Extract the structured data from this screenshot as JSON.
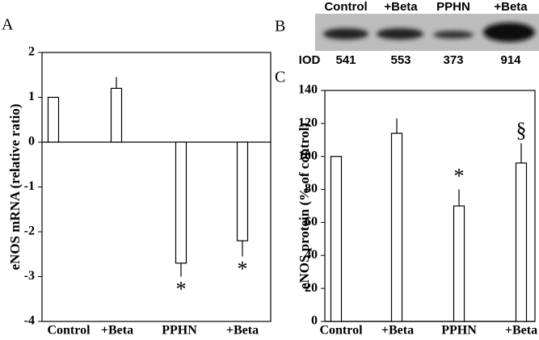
{
  "chart_data": [
    {
      "type": "bar",
      "panel_label": "A",
      "y_label": "eNOS mRNA (relative ratio)",
      "categories": [
        "Control",
        "+Beta",
        "PPHN",
        "+Beta"
      ],
      "values": [
        1,
        1.2,
        -2.7,
        -2.2
      ],
      "errors": [
        null,
        0.25,
        0.3,
        0.35
      ],
      "markers": [
        null,
        null,
        "*",
        "*"
      ],
      "color": "#ffffff",
      "ylim": [
        -4,
        2
      ],
      "yticks": [
        -4,
        -3,
        -2,
        -1,
        0,
        1,
        2
      ]
    },
    {
      "type": "bar",
      "panel_label": "C",
      "y_label": "eNOS protein (% of control)",
      "categories": [
        "Control",
        "+Beta",
        "PPHN",
        "+Beta"
      ],
      "values": [
        100,
        114,
        70,
        96
      ],
      "errors": [
        null,
        9,
        10,
        12
      ],
      "markers": [
        null,
        null,
        "*",
        "§"
      ],
      "color": "#ffffff",
      "ylim": [
        0,
        140
      ],
      "yticks": [
        0,
        20,
        40,
        60,
        80,
        100,
        120,
        140
      ]
    }
  ],
  "blot": {
    "panel_label": "B",
    "lanes": [
      "Control",
      "+Beta",
      "PPHN",
      "+Beta"
    ],
    "row_label": "IOD",
    "iod": [
      541,
      553,
      373,
      914
    ]
  }
}
